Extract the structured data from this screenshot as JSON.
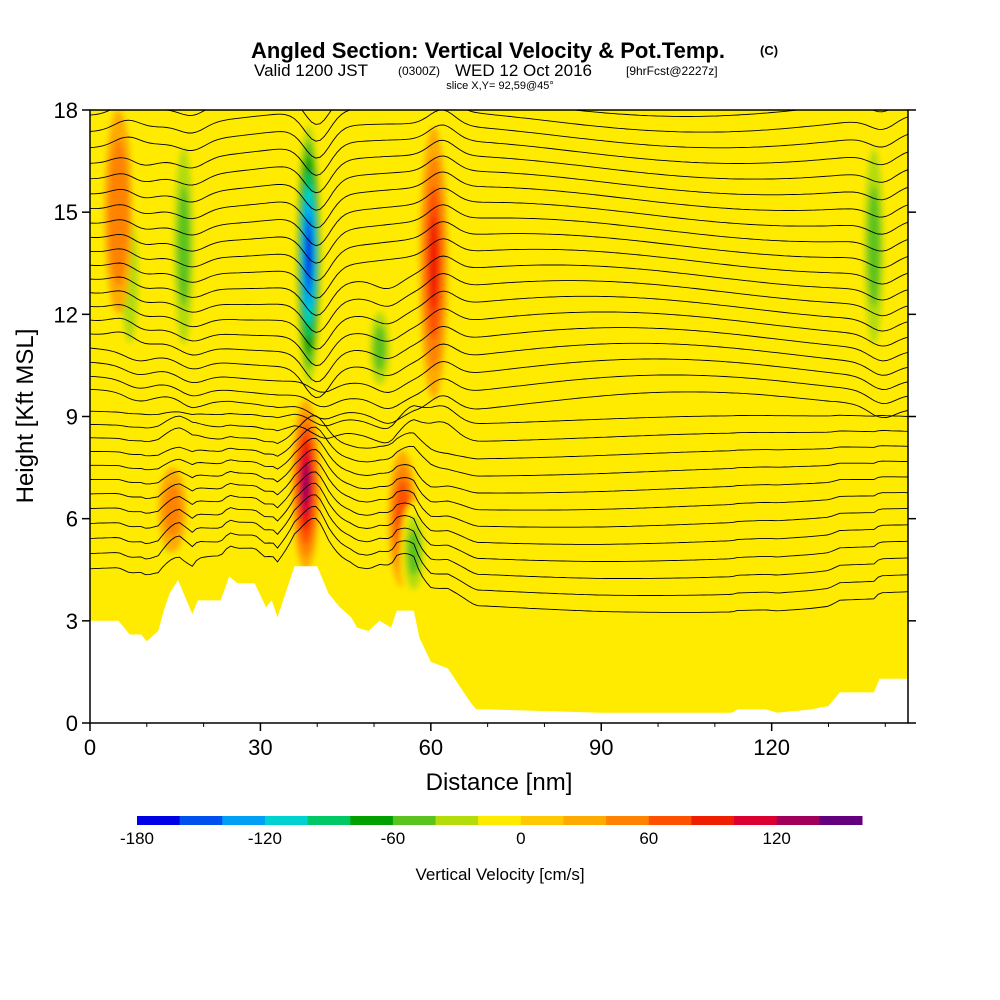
{
  "title": {
    "main": "Angled Section: Vertical Velocity & Pot.Temp.",
    "units": "(C)",
    "valid_prefix": "Valid 1200 JST",
    "valid_utc": "(0300Z)",
    "valid_date": "WED 12 Oct 2016",
    "forecast": "[9hrFcst@2227z]",
    "slice": "slice X,Y= 92,59@45°"
  },
  "chart_data": {
    "type": "heatmap",
    "xlabel": "Distance [nm]",
    "ylabel": "Height [Kft MSL]",
    "xlim": [
      0,
      144
    ],
    "ylim": [
      0,
      18
    ],
    "x_ticks": [
      "0",
      "30",
      "60",
      "90",
      "120"
    ],
    "x_tick_values": [
      0,
      30,
      60,
      90,
      120
    ],
    "y_ticks": [
      "0",
      "3",
      "6",
      "9",
      "12",
      "15",
      "18"
    ],
    "y_tick_values": [
      0,
      3,
      6,
      9,
      12,
      15,
      18
    ],
    "colorbar": {
      "title": "Vertical Velocity [cm/s]",
      "min": -180,
      "step": 20,
      "labels": [
        "-180",
        "-120",
        "-60",
        "0",
        "60",
        "120"
      ],
      "label_values": [
        -180,
        -120,
        -60,
        0,
        60,
        120
      ],
      "colors": [
        "#0000e6",
        "#0050f0",
        "#00a0f5",
        "#00d2d2",
        "#00c864",
        "#00a000",
        "#5ac31e",
        "#b4dc0a",
        "#ffeb00",
        "#ffc800",
        "#ffaa00",
        "#ff8200",
        "#ff5000",
        "#f01e00",
        "#dc0032",
        "#a0005a",
        "#64007d"
      ]
    },
    "velocity_features": [
      {
        "x": 38.5,
        "kind": "downdraft",
        "peak_cms": -170,
        "range_kft": [
          9.5,
          18
        ]
      },
      {
        "x": 38,
        "kind": "updraft",
        "peak_cms": 120,
        "range_kft": [
          4.5,
          9.5
        ]
      },
      {
        "x": 60.5,
        "kind": "updraft",
        "peak_cms": 80,
        "range_kft": [
          9.5,
          17.5
        ]
      },
      {
        "x": 55,
        "kind": "updraft",
        "peak_cms": 70,
        "range_kft": [
          4,
          8
        ]
      },
      {
        "x": 51,
        "kind": "downdraft",
        "peak_cms": -60,
        "range_kft": [
          9.5,
          12.5
        ]
      },
      {
        "x": 16.5,
        "kind": "downdraft",
        "peak_cms": -50,
        "range_kft": [
          10,
          18
        ]
      },
      {
        "x": 7,
        "kind": "downdraft",
        "peak_cms": -40,
        "range_kft": [
          10,
          16
        ]
      },
      {
        "x": 138,
        "kind": "downdraft",
        "peak_cms": -60,
        "range_kft": [
          10,
          18
        ]
      },
      {
        "x": 5,
        "kind": "updraft",
        "peak_cms": 50,
        "range_kft": [
          12,
          18
        ]
      },
      {
        "x": 14,
        "kind": "downdraft",
        "peak_cms": -40,
        "range_kft": [
          4.5,
          7
        ]
      },
      {
        "x": 57,
        "kind": "downdraft",
        "peak_cms": -50,
        "range_kft": [
          3.5,
          6.5
        ]
      },
      {
        "x": 14.5,
        "kind": "updraft",
        "peak_cms": 40,
        "range_kft": [
          5,
          7.5
        ]
      }
    ],
    "terrain_kft": [
      [
        0,
        3
      ],
      [
        5,
        3
      ],
      [
        7,
        2.6
      ],
      [
        9,
        2.6
      ],
      [
        10,
        2.4
      ],
      [
        12,
        2.7
      ],
      [
        13,
        3.3
      ],
      [
        14,
        3.8
      ],
      [
        15.5,
        4.2
      ],
      [
        17,
        3.6
      ],
      [
        18,
        3.2
      ],
      [
        19,
        3.6
      ],
      [
        20,
        3.6
      ],
      [
        23,
        3.6
      ],
      [
        24.5,
        4.3
      ],
      [
        26,
        4.1
      ],
      [
        29,
        4.1
      ],
      [
        31,
        3.4
      ],
      [
        32,
        3.6
      ],
      [
        33,
        3.1
      ],
      [
        34,
        3.6
      ],
      [
        36,
        4.6
      ],
      [
        40,
        4.6
      ],
      [
        42,
        3.8
      ],
      [
        44,
        3.4
      ],
      [
        46,
        3.1
      ],
      [
        47,
        2.8
      ],
      [
        49,
        2.7
      ],
      [
        51,
        3
      ],
      [
        53,
        2.8
      ],
      [
        54,
        3.3
      ],
      [
        57,
        3.3
      ],
      [
        58,
        2.5
      ],
      [
        60,
        1.8
      ],
      [
        63,
        1.6
      ],
      [
        65,
        1.1
      ],
      [
        67,
        0.6
      ],
      [
        68,
        0.4
      ],
      [
        70,
        0.4
      ],
      [
        90,
        0.3
      ],
      [
        110,
        0.3
      ],
      [
        113,
        0.3
      ],
      [
        114,
        0.4
      ],
      [
        119,
        0.4
      ],
      [
        121,
        0.3
      ],
      [
        127,
        0.4
      ],
      [
        130,
        0.5
      ],
      [
        132,
        0.9
      ],
      [
        138,
        0.9
      ],
      [
        139,
        1.3
      ],
      [
        144,
        1.3
      ]
    ],
    "theta_contours": {
      "count": 32,
      "first_surface_kft": 3.9,
      "spacing_kft": 0.46,
      "interval_c": 1
    }
  }
}
